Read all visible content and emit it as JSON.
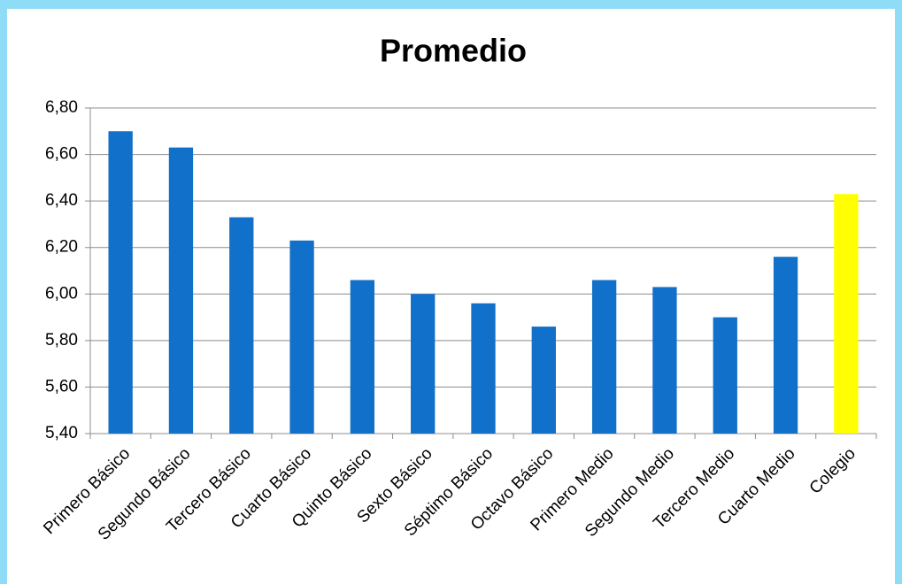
{
  "chart_data": {
    "type": "bar",
    "title": "Promedio",
    "categories": [
      "Primero Básico",
      "Segundo Básico",
      "Tercero Básico",
      "Cuarto Básico",
      "Quinto Básico",
      "Sexto Básico",
      "Séptimo Básico",
      "Octavo Básico",
      "Primero Medio",
      "Segundo Medio",
      "Tercero Medio",
      "Cuarto Medio",
      "Colegio"
    ],
    "values": [
      6.7,
      6.63,
      6.33,
      6.23,
      6.06,
      6.0,
      5.96,
      5.86,
      6.06,
      6.03,
      5.9,
      6.16,
      6.43
    ],
    "colors": [
      "#1170c9",
      "#1170c9",
      "#1170c9",
      "#1170c9",
      "#1170c9",
      "#1170c9",
      "#1170c9",
      "#1170c9",
      "#1170c9",
      "#1170c9",
      "#1170c9",
      "#1170c9",
      "#ffff00"
    ],
    "ylim": [
      5.4,
      6.8
    ],
    "yticks": [
      {
        "value": 5.4,
        "label": "5,40"
      },
      {
        "value": 5.6,
        "label": "5,60"
      },
      {
        "value": 5.8,
        "label": "5,80"
      },
      {
        "value": 6.0,
        "label": "6,00"
      },
      {
        "value": 6.2,
        "label": "6,20"
      },
      {
        "value": 6.4,
        "label": "6,40"
      },
      {
        "value": 6.6,
        "label": "6,60"
      },
      {
        "value": 6.8,
        "label": "6,80"
      }
    ],
    "grid": true
  }
}
